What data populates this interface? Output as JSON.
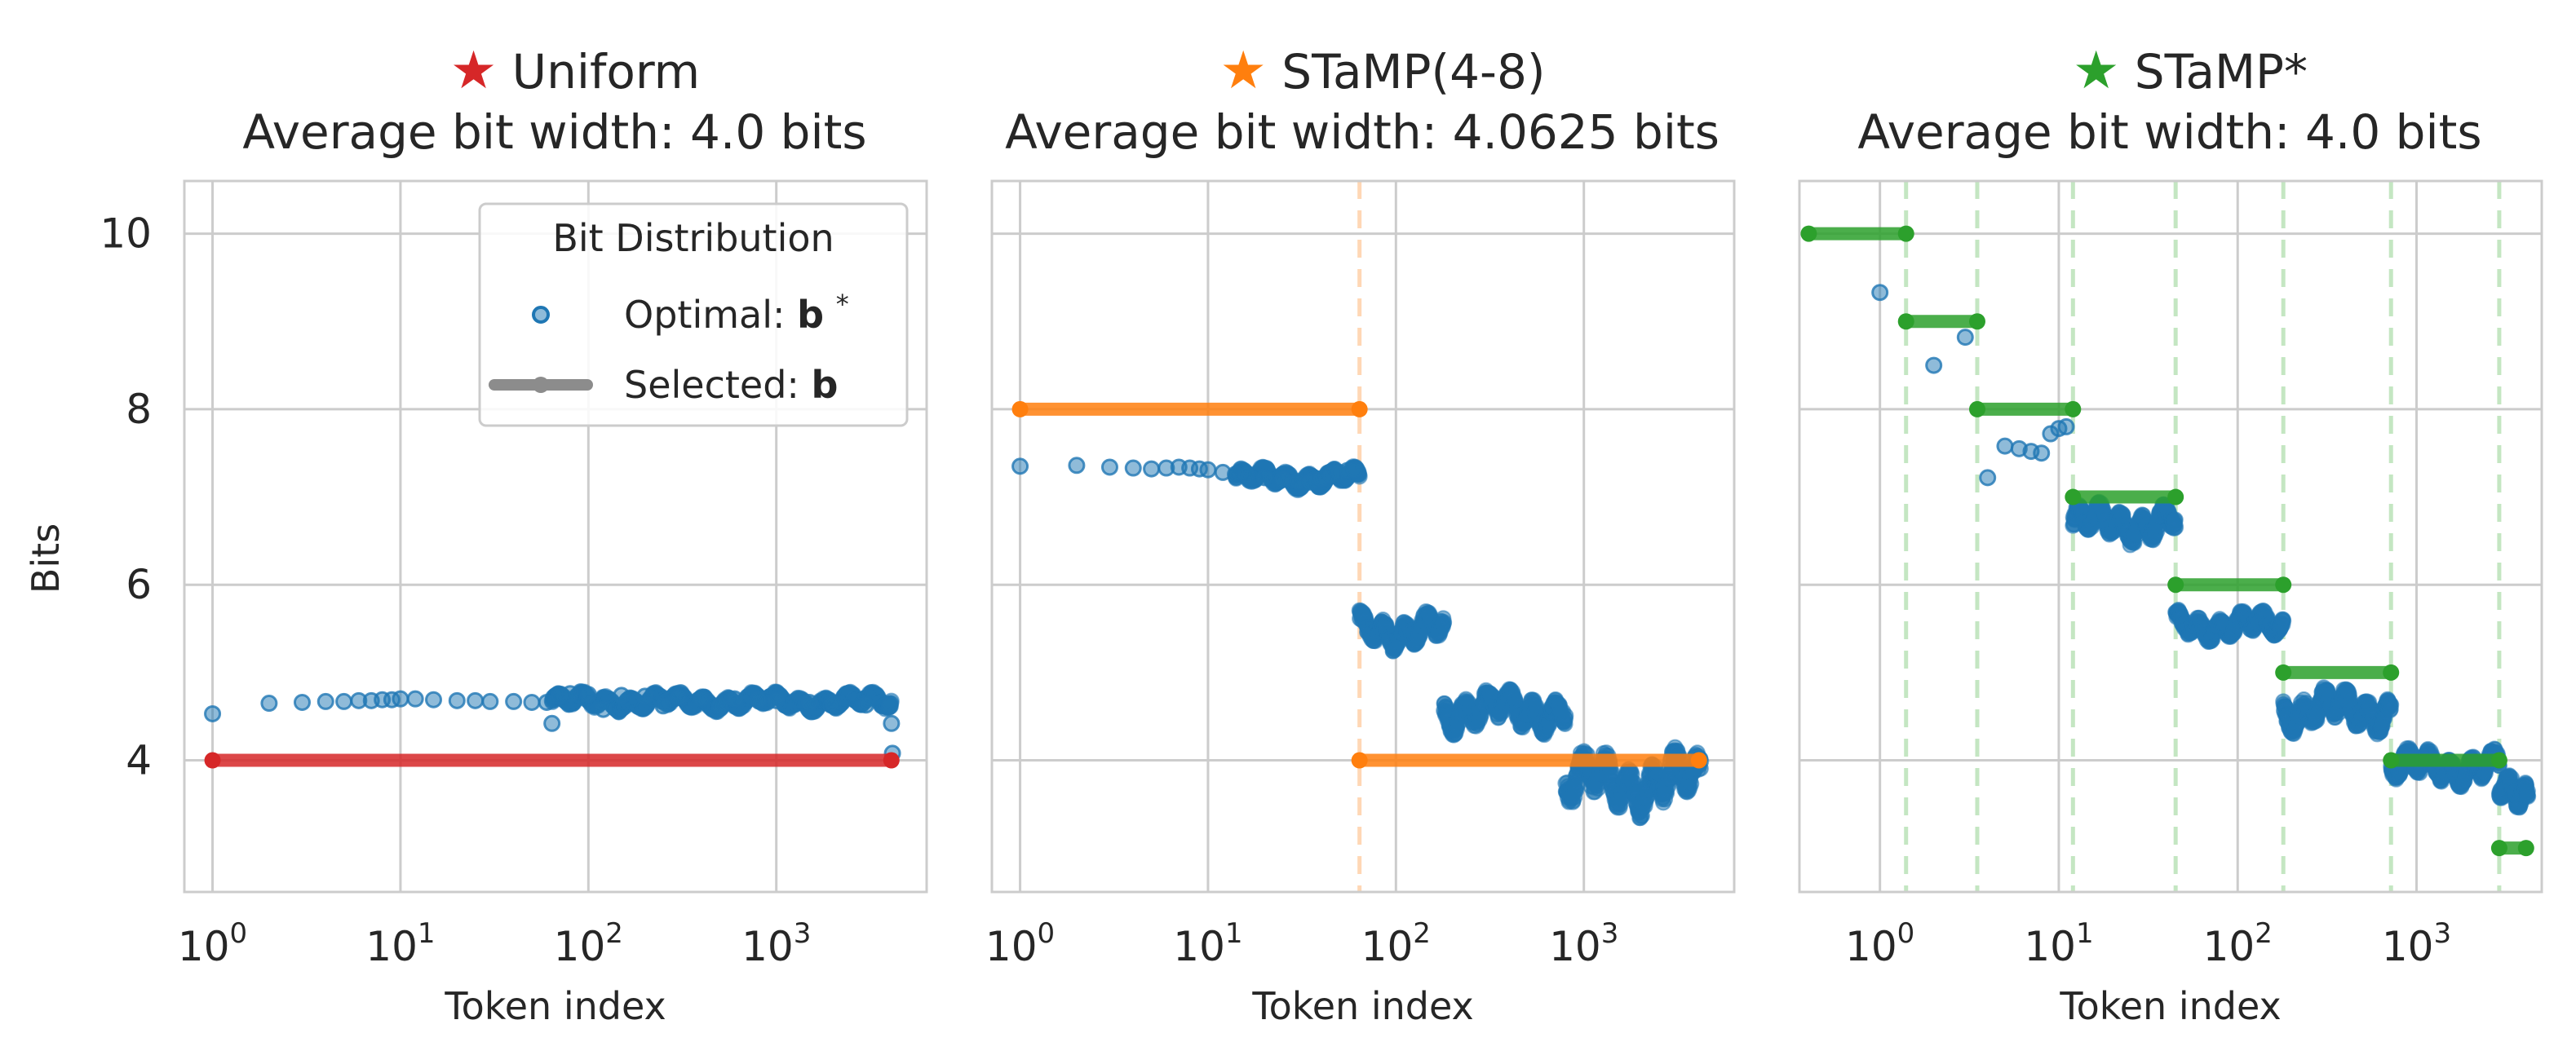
{
  "figure": {
    "y_axis_label": "Bits",
    "x_axis_label": "Token index",
    "legend": {
      "title": "Bit Distribution",
      "optimal_label": "Optimal: ",
      "optimal_symbol": "b",
      "optimal_sup": "*",
      "selected_label": "Selected: ",
      "selected_symbol": "b"
    }
  },
  "colors": {
    "optimal": "#1f77b4",
    "uniform": "#d62728",
    "stamp48": "#ff7f0e",
    "stampstar": "#2ca02c",
    "legend_selected": "#8c8c8c",
    "grid": "#cccccc",
    "axes": "#cccccc"
  },
  "chart_data": [
    {
      "type": "scatter",
      "title_star": "★",
      "title_name": "Uniform",
      "subtitle": "Average bit width: 4.0 bits",
      "xscale": "log",
      "xlim_log10": [
        -0.15,
        3.8
      ],
      "ylim": [
        2.5,
        10.6
      ],
      "xticks": [
        {
          "base": "10",
          "exp": "0",
          "log10": 0
        },
        {
          "base": "10",
          "exp": "1",
          "log10": 1
        },
        {
          "base": "10",
          "exp": "2",
          "log10": 2
        },
        {
          "base": "10",
          "exp": "3",
          "log10": 3
        }
      ],
      "yticks": [
        {
          "value": 4,
          "label": "4"
        },
        {
          "value": 6,
          "label": "6"
        },
        {
          "value": 8,
          "label": "8"
        },
        {
          "value": 10,
          "label": "10"
        }
      ],
      "color_key": "uniform",
      "optimal_points": [
        [
          1,
          4.53
        ],
        [
          2,
          4.65
        ],
        [
          3,
          4.66
        ],
        [
          4,
          4.67
        ],
        [
          5,
          4.67
        ],
        [
          6,
          4.68
        ],
        [
          7,
          4.68
        ],
        [
          8,
          4.69
        ],
        [
          9,
          4.69
        ],
        [
          10,
          4.7
        ],
        [
          12,
          4.7
        ],
        [
          15,
          4.69
        ],
        [
          20,
          4.68
        ],
        [
          25,
          4.68
        ],
        [
          30,
          4.67
        ],
        [
          40,
          4.67
        ],
        [
          50,
          4.66
        ],
        [
          60,
          4.66
        ],
        [
          64,
          4.42
        ],
        [
          70,
          4.73
        ],
        [
          80,
          4.76
        ],
        [
          100,
          4.75
        ],
        [
          120,
          4.58
        ],
        [
          150,
          4.74
        ],
        [
          200,
          4.73
        ],
        [
          250,
          4.62
        ],
        [
          300,
          4.72
        ],
        [
          400,
          4.71
        ],
        [
          500,
          4.62
        ],
        [
          600,
          4.7
        ],
        [
          800,
          4.69
        ],
        [
          1000,
          4.68
        ],
        [
          1500,
          4.66
        ],
        [
          2000,
          4.65
        ],
        [
          3000,
          4.63
        ],
        [
          4000,
          4.62
        ],
        [
          4100,
          4.42
        ],
        [
          4150,
          4.08
        ]
      ],
      "optimal_bands": [
        {
          "x_start": 64,
          "x_end": 4096,
          "y_low": 4.55,
          "y_high": 4.79
        }
      ],
      "selected_segments": [
        {
          "x_start": 1,
          "x_end": 4096,
          "bits": 4
        }
      ],
      "breakpoints": []
    },
    {
      "type": "scatter",
      "title_star": "★",
      "title_name": "STaMP(4-8)",
      "subtitle": "Average bit width: 4.0625 bits",
      "xscale": "log",
      "xlim_log10": [
        -0.15,
        3.8
      ],
      "ylim": [
        2.5,
        10.6
      ],
      "xticks": [
        {
          "base": "10",
          "exp": "0",
          "log10": 0
        },
        {
          "base": "10",
          "exp": "1",
          "log10": 1
        },
        {
          "base": "10",
          "exp": "2",
          "log10": 2
        },
        {
          "base": "10",
          "exp": "3",
          "log10": 3
        }
      ],
      "yticks": [
        {
          "value": 4,
          "label": "4"
        },
        {
          "value": 6,
          "label": "6"
        },
        {
          "value": 8,
          "label": "8"
        },
        {
          "value": 10,
          "label": "10"
        }
      ],
      "color_key": "stamp48",
      "optimal_points": [
        [
          1,
          7.35
        ],
        [
          2,
          7.36
        ],
        [
          3,
          7.34
        ],
        [
          4,
          7.33
        ],
        [
          5,
          7.32
        ],
        [
          6,
          7.33
        ],
        [
          7,
          7.34
        ],
        [
          8,
          7.33
        ],
        [
          9,
          7.32
        ],
        [
          10,
          7.31
        ],
        [
          12,
          7.28
        ],
        [
          14,
          7.26
        ],
        [
          16,
          7.25
        ],
        [
          20,
          7.22
        ],
        [
          25,
          7.2
        ],
        [
          30,
          7.18
        ],
        [
          35,
          7.17
        ],
        [
          40,
          7.21
        ],
        [
          45,
          7.25
        ],
        [
          50,
          7.28
        ],
        [
          55,
          7.3
        ],
        [
          60,
          7.31
        ]
      ],
      "optimal_bands": [
        {
          "x_start": 14,
          "x_end": 64,
          "y_low": 7.08,
          "y_high": 7.35
        },
        {
          "x_start": 64,
          "x_end": 180,
          "y_low": 5.25,
          "y_high": 5.72
        },
        {
          "x_start": 180,
          "x_end": 800,
          "y_low": 4.3,
          "y_high": 4.85
        },
        {
          "x_start": 800,
          "x_end": 4200,
          "y_low": 3.35,
          "y_high": 4.15
        }
      ],
      "selected_segments": [
        {
          "x_start": 1,
          "x_end": 64,
          "bits": 8
        },
        {
          "x_start": 64,
          "x_end": 4096,
          "bits": 4
        }
      ],
      "breakpoints": [
        64
      ]
    },
    {
      "type": "scatter",
      "title_star": "★",
      "title_name": "STaMP*",
      "subtitle": "Average bit width: 4.0 bits",
      "xscale": "log",
      "xlim_log10": [
        -0.45,
        3.7
      ],
      "ylim": [
        2.5,
        10.6
      ],
      "xticks": [
        {
          "base": "10",
          "exp": "0",
          "log10": 0
        },
        {
          "base": "10",
          "exp": "1",
          "log10": 1
        },
        {
          "base": "10",
          "exp": "2",
          "log10": 2
        },
        {
          "base": "10",
          "exp": "3",
          "log10": 3
        }
      ],
      "yticks": [
        {
          "value": 4,
          "label": "4"
        },
        {
          "value": 6,
          "label": "6"
        },
        {
          "value": 8,
          "label": "8"
        },
        {
          "value": 10,
          "label": "10"
        }
      ],
      "color_key": "stampstar",
      "optimal_points": [
        [
          1,
          9.33
        ],
        [
          2,
          8.5
        ],
        [
          3,
          8.82
        ],
        [
          4,
          7.22
        ],
        [
          5,
          7.58
        ],
        [
          6,
          7.55
        ],
        [
          7,
          7.52
        ],
        [
          8,
          7.5
        ],
        [
          9,
          7.72
        ],
        [
          10,
          7.78
        ],
        [
          11,
          7.8
        ]
      ],
      "optimal_bands": [
        {
          "x_start": 12,
          "x_end": 45,
          "y_low": 6.45,
          "y_high": 6.95
        },
        {
          "x_start": 45,
          "x_end": 180,
          "y_low": 5.35,
          "y_high": 5.72
        },
        {
          "x_start": 180,
          "x_end": 720,
          "y_low": 4.3,
          "y_high": 4.85
        },
        {
          "x_start": 720,
          "x_end": 2900,
          "y_low": 3.7,
          "y_high": 4.15
        },
        {
          "x_start": 2900,
          "x_end": 4200,
          "y_low": 3.4,
          "y_high": 3.9
        }
      ],
      "selected_segments": [
        {
          "x_start": 0.4,
          "x_end": 1.4,
          "bits": 10
        },
        {
          "x_start": 1.4,
          "x_end": 3.5,
          "bits": 9
        },
        {
          "x_start": 3.5,
          "x_end": 12,
          "bits": 8
        },
        {
          "x_start": 12,
          "x_end": 45,
          "bits": 7
        },
        {
          "x_start": 45,
          "x_end": 180,
          "bits": 6
        },
        {
          "x_start": 180,
          "x_end": 720,
          "bits": 5
        },
        {
          "x_start": 720,
          "x_end": 2900,
          "bits": 4
        },
        {
          "x_start": 2900,
          "x_end": 4096,
          "bits": 3
        }
      ],
      "breakpoints": [
        1.4,
        3.5,
        12,
        45,
        180,
        720,
        2900
      ]
    }
  ]
}
